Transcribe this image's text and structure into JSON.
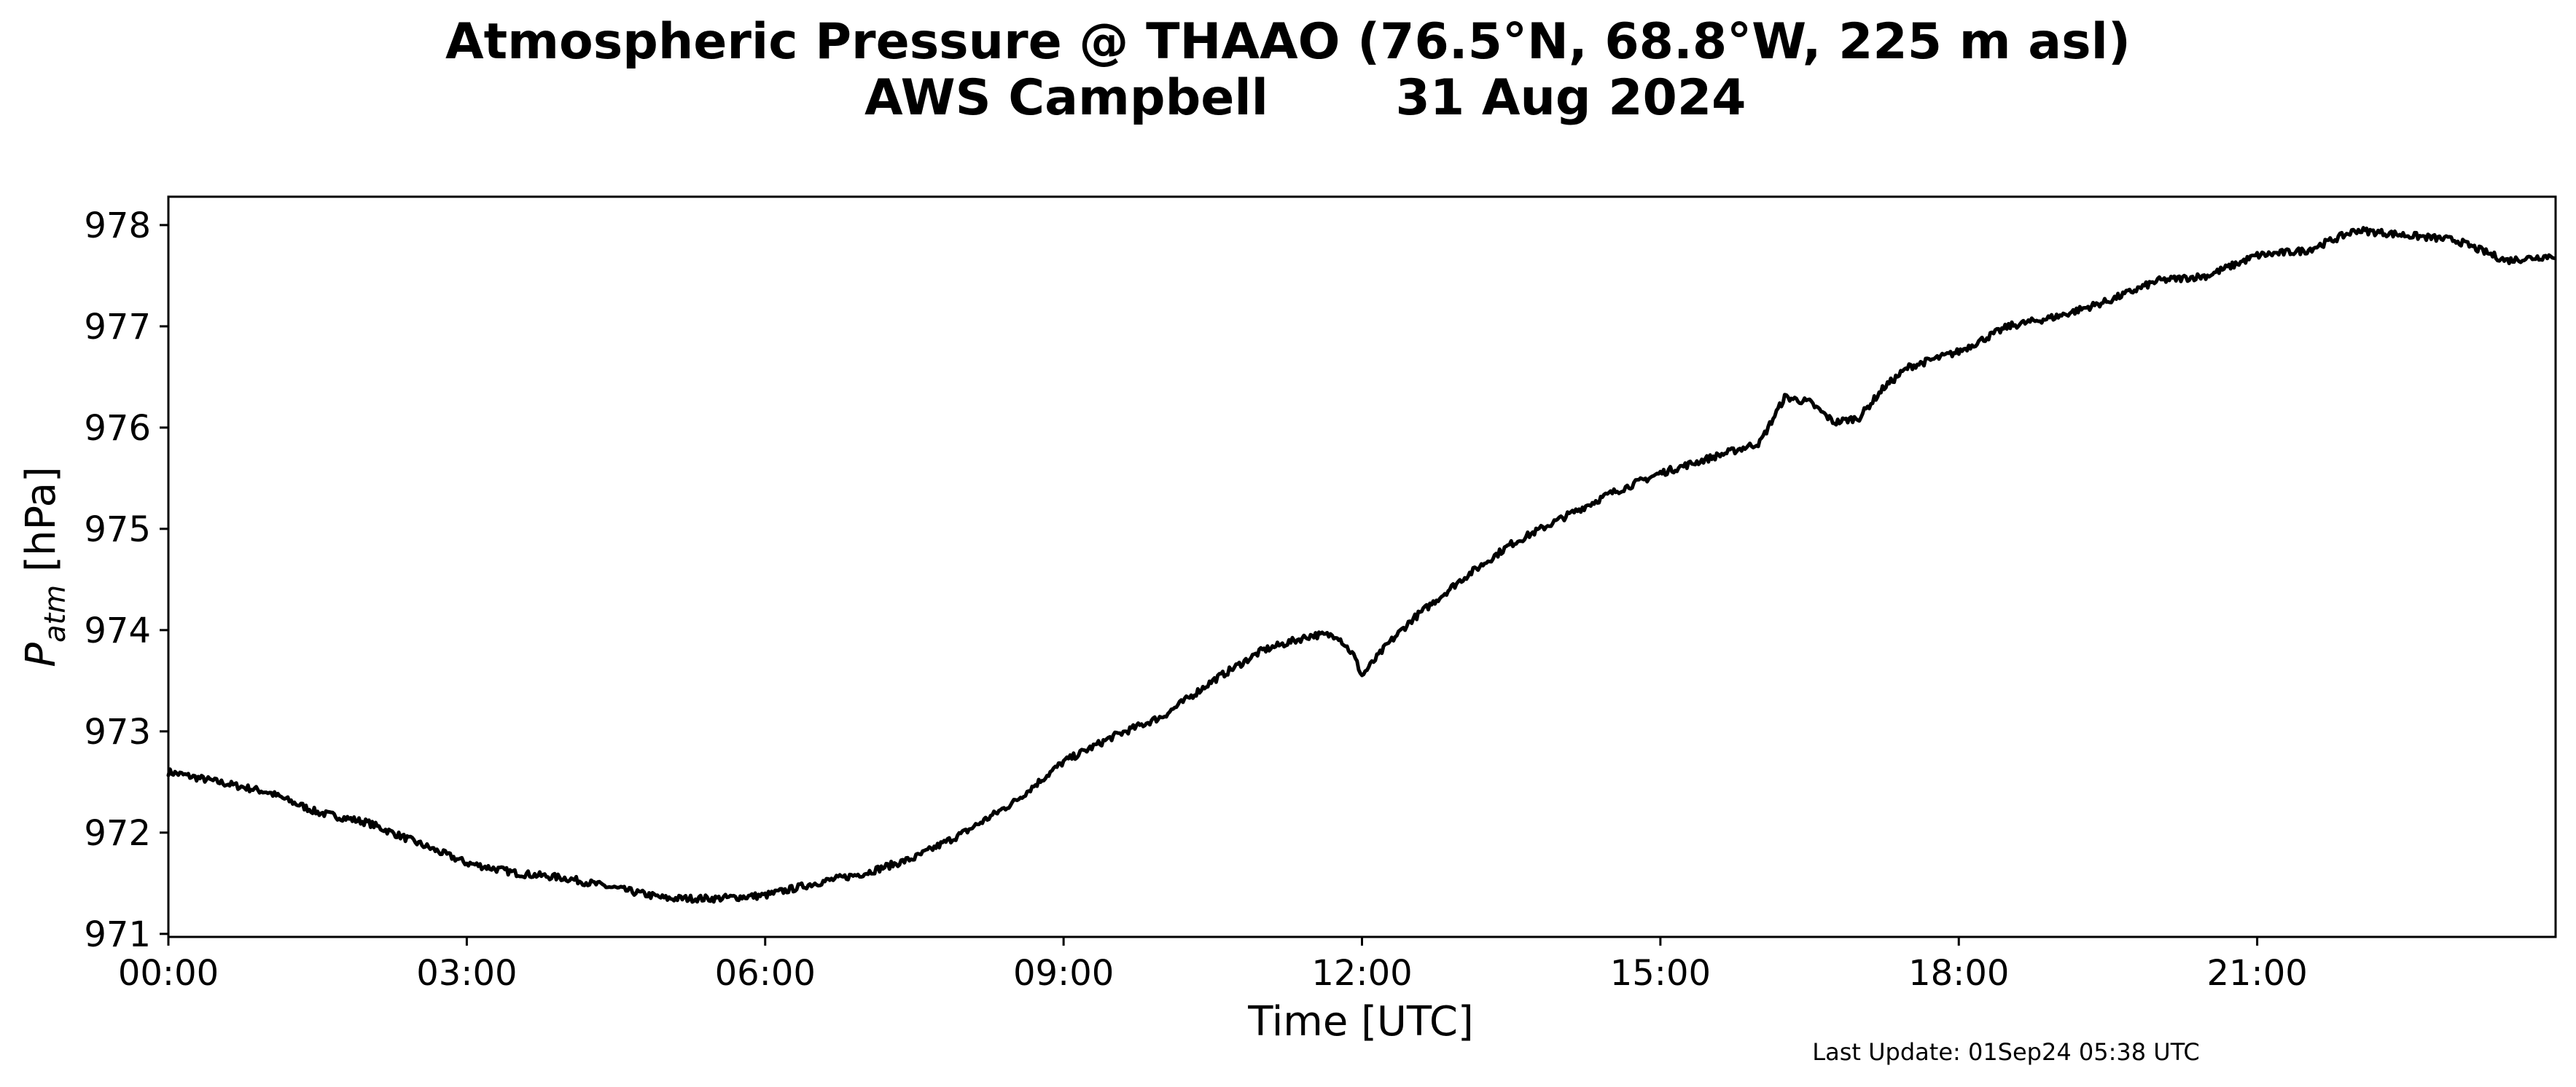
{
  "figure": {
    "title_line1": "Atmospheric Pressure @ THAAO (76.5°N, 68.8°W, 225 m asl)",
    "title_station": "AWS Campbell",
    "title_date": "31 Aug 2024",
    "last_update": "Last Update: 01Sep24 05:38 UTC"
  },
  "chart_data": {
    "type": "line",
    "title": "Atmospheric Pressure @ THAAO (76.5°N, 68.8°W, 225 m asl)\nAWS Campbell 31 Aug 2024",
    "xlabel": "Time [UTC]",
    "ylabel_symbol": "P",
    "ylabel_subscript": "atm",
    "ylabel_unit": " [hPa]",
    "xlim": [
      "00:00",
      "24:00"
    ],
    "ylim": [
      970.97,
      978.28
    ],
    "x_ticks": [
      "00:00",
      "03:00",
      "06:00",
      "09:00",
      "12:00",
      "15:00",
      "18:00",
      "21:00"
    ],
    "y_ticks": [
      971,
      972,
      973,
      974,
      975,
      976,
      977,
      978
    ],
    "grid": false,
    "legend": false,
    "line_color": "#000000",
    "series": [
      {
        "x": [
          "00:00",
          "00:30",
          "01:00",
          "01:30",
          "02:00",
          "02:30",
          "03:00",
          "03:30",
          "04:00",
          "04:30",
          "05:00",
          "05:30",
          "06:00",
          "06:30",
          "07:00",
          "07:30",
          "08:00",
          "08:30",
          "09:00",
          "09:30",
          "10:00",
          "10:30",
          "11:00",
          "11:30",
          "11:45",
          "11:55",
          "12:00",
          "12:15",
          "12:30",
          "13:00",
          "13:30",
          "14:00",
          "14:30",
          "15:00",
          "15:30",
          "16:00",
          "16:15",
          "16:30",
          "16:45",
          "17:00",
          "17:15",
          "17:30",
          "18:00",
          "18:30",
          "19:00",
          "19:30",
          "20:00",
          "20:30",
          "21:00",
          "21:30",
          "22:00",
          "22:30",
          "23:00",
          "23:30",
          "23:59"
        ],
        "values": [
          972.6,
          972.5,
          972.4,
          972.2,
          972.1,
          971.9,
          971.7,
          971.6,
          971.55,
          971.45,
          971.35,
          971.35,
          971.38,
          971.5,
          971.6,
          971.75,
          972.0,
          972.3,
          972.7,
          972.95,
          973.15,
          973.5,
          973.8,
          973.95,
          973.95,
          973.75,
          973.55,
          973.85,
          974.1,
          974.5,
          974.85,
          975.1,
          975.35,
          975.55,
          975.7,
          975.85,
          976.3,
          976.25,
          976.05,
          976.1,
          976.4,
          976.6,
          976.75,
          977.0,
          977.1,
          977.25,
          977.45,
          977.5,
          977.7,
          977.75,
          977.95,
          977.9,
          977.85,
          977.65,
          977.7
        ]
      }
    ]
  }
}
